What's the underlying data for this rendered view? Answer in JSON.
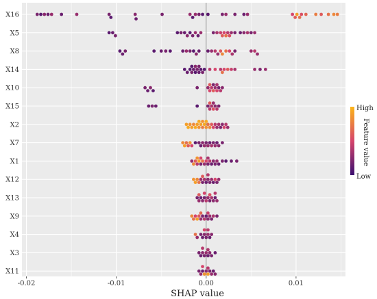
{
  "chart_data": {
    "type": "scatter",
    "subtype": "beeswarm",
    "title": "",
    "xlabel": "SHAP value",
    "ylabel": "",
    "xlim": [
      -0.0205,
      0.0155
    ],
    "xticks": [
      -0.02,
      -0.01,
      0.0,
      0.01
    ],
    "xtick_labels": [
      "-0.02",
      "-0.01",
      "0.00",
      "0.01"
    ],
    "grid": true,
    "background_color": "#ebebeb",
    "zero_line_color": "#8c8c8c",
    "color_scale": {
      "title": "Feature value",
      "high_label": "High",
      "low_label": "Low",
      "low_color": "#3b0f70",
      "mid_color": "#d6456c",
      "high_color": "#fcb519",
      "placement": "right"
    },
    "features": [
      {
        "name": "X16",
        "points": [
          [
            -0.0188,
            0.2
          ],
          [
            -0.0184,
            0.1
          ],
          [
            -0.018,
            0.25
          ],
          [
            -0.0176,
            0.15
          ],
          [
            -0.0172,
            0.3
          ],
          [
            -0.0161,
            0.15
          ],
          [
            -0.0144,
            0.3
          ],
          [
            -0.0108,
            0.2
          ],
          [
            -0.0106,
            0.1
          ],
          [
            -0.0079,
            0.25
          ],
          [
            -0.0078,
            0.15
          ],
          [
            -0.0049,
            0.2
          ],
          [
            -0.0018,
            0.3
          ],
          [
            -0.0015,
            0.1
          ],
          [
            -0.0012,
            0.3
          ],
          [
            -0.0008,
            0.2
          ],
          [
            -0.0004,
            0.1
          ],
          [
            0.0002,
            0.1
          ],
          [
            0.0018,
            0.2
          ],
          [
            0.0022,
            0.3
          ],
          [
            0.0032,
            0.2
          ],
          [
            0.0042,
            0.15
          ],
          [
            0.0046,
            0.3
          ],
          [
            0.0096,
            0.5
          ],
          [
            0.0099,
            0.6
          ],
          [
            0.0101,
            0.9
          ],
          [
            0.0104,
            0.7
          ],
          [
            0.0106,
            0.55
          ],
          [
            0.0111,
            0.65
          ],
          [
            0.0122,
            0.75
          ],
          [
            0.0128,
            0.6
          ],
          [
            0.0136,
            0.7
          ],
          [
            0.0142,
            0.8
          ],
          [
            0.0146,
            0.75
          ]
        ]
      },
      {
        "name": "X5",
        "points": [
          [
            -0.0108,
            0.1
          ],
          [
            -0.0104,
            0.15
          ],
          [
            -0.0101,
            0.2
          ],
          [
            -0.0032,
            0.1
          ],
          [
            -0.0028,
            0.2
          ],
          [
            -0.0024,
            0.15
          ],
          [
            -0.0021,
            0.25
          ],
          [
            -0.0018,
            0.1
          ],
          [
            -0.0015,
            0.2
          ],
          [
            -0.0012,
            0.3
          ],
          [
            -0.0009,
            0.15
          ],
          [
            -0.0006,
            0.3
          ],
          [
            0.0008,
            0.2
          ],
          [
            0.0012,
            0.35
          ],
          [
            0.0016,
            0.45
          ],
          [
            0.0018,
            0.6
          ],
          [
            0.002,
            0.5
          ],
          [
            0.0022,
            0.7
          ],
          [
            0.0024,
            0.4
          ],
          [
            0.0026,
            0.55
          ],
          [
            0.0028,
            0.3
          ],
          [
            0.0032,
            0.2
          ],
          [
            0.0038,
            0.15
          ],
          [
            0.0042,
            0.25
          ],
          [
            0.0046,
            0.35
          ],
          [
            0.005,
            0.2
          ],
          [
            0.0054,
            0.3
          ]
        ]
      },
      {
        "name": "X8",
        "points": [
          [
            -0.0096,
            0.1
          ],
          [
            -0.0093,
            0.15
          ],
          [
            -0.009,
            0.2
          ],
          [
            -0.0058,
            0.1
          ],
          [
            -0.005,
            0.15
          ],
          [
            -0.0045,
            0.2
          ],
          [
            -0.004,
            0.1
          ],
          [
            -0.0026,
            0.15
          ],
          [
            -0.0022,
            0.3
          ],
          [
            -0.0018,
            0.2
          ],
          [
            -0.0014,
            0.1
          ],
          [
            -0.0011,
            0.25
          ],
          [
            -0.0008,
            0.15
          ],
          [
            0.0002,
            0.15
          ],
          [
            0.0006,
            0.3
          ],
          [
            0.001,
            0.4
          ],
          [
            0.0013,
            0.3
          ],
          [
            0.0016,
            0.6
          ],
          [
            0.0018,
            0.8
          ],
          [
            0.0022,
            0.7
          ],
          [
            0.0026,
            0.5
          ],
          [
            0.0029,
            0.35
          ],
          [
            0.0032,
            0.2
          ],
          [
            0.005,
            0.3
          ],
          [
            0.0054,
            0.4
          ],
          [
            0.0057,
            0.3
          ]
        ]
      },
      {
        "name": "X14",
        "points": [
          [
            -0.0024,
            0.1
          ],
          [
            -0.0021,
            0.15
          ],
          [
            -0.0018,
            0.1
          ],
          [
            -0.0016,
            0.2
          ],
          [
            -0.0014,
            0.15
          ],
          [
            -0.0012,
            0.1
          ],
          [
            -0.001,
            0.2
          ],
          [
            -0.0008,
            0.15
          ],
          [
            -0.0006,
            0.1
          ],
          [
            -0.0004,
            0.2
          ],
          [
            -0.0002,
            0.1
          ],
          [
            -0.0016,
            0.1
          ],
          [
            -0.0012,
            0.25
          ],
          [
            -0.0008,
            0.2
          ],
          [
            0.0004,
            0.4
          ],
          [
            0.001,
            0.5
          ],
          [
            0.0016,
            0.4
          ],
          [
            0.0018,
            0.7
          ],
          [
            0.002,
            0.5
          ],
          [
            0.0024,
            0.6
          ],
          [
            0.0028,
            0.45
          ],
          [
            0.0032,
            0.35
          ],
          [
            0.0054,
            0.3
          ],
          [
            0.006,
            0.2
          ],
          [
            0.0066,
            0.3
          ]
        ]
      },
      {
        "name": "X10",
        "points": [
          [
            -0.0068,
            0.2
          ],
          [
            -0.0065,
            0.15
          ],
          [
            -0.0062,
            0.25
          ],
          [
            -0.0059,
            0.1
          ],
          [
            -0.001,
            0.2
          ],
          [
            0.0002,
            0.3
          ],
          [
            0.0004,
            0.5
          ],
          [
            0.0006,
            0.4
          ],
          [
            0.0008,
            0.6
          ],
          [
            0.001,
            0.3
          ],
          [
            0.0012,
            0.5
          ],
          [
            0.0014,
            0.2
          ],
          [
            0.0016,
            0.4
          ],
          [
            0.0018,
            0.25
          ],
          [
            0.0004,
            0.6
          ],
          [
            0.0008,
            0.2
          ],
          [
            0.0012,
            0.35
          ]
        ]
      },
      {
        "name": "X15",
        "points": [
          [
            -0.0064,
            0.15
          ],
          [
            -0.006,
            0.2
          ],
          [
            -0.0056,
            0.15
          ],
          [
            -0.001,
            0.1
          ],
          [
            0.0002,
            0.2
          ],
          [
            0.0004,
            0.4
          ],
          [
            0.0006,
            0.35
          ],
          [
            0.0008,
            0.55
          ],
          [
            0.001,
            0.25
          ],
          [
            0.0012,
            0.4
          ],
          [
            0.0014,
            0.2
          ],
          [
            0.0004,
            0.6
          ],
          [
            0.0008,
            0.3
          ]
        ]
      },
      {
        "name": "X2",
        "points": [
          [
            -0.0022,
            0.9
          ],
          [
            -0.002,
            0.95
          ],
          [
            -0.0018,
            0.85
          ],
          [
            -0.0016,
            0.9
          ],
          [
            -0.0014,
            0.8
          ],
          [
            -0.0012,
            0.95
          ],
          [
            -0.001,
            0.9
          ],
          [
            -0.0008,
            0.85
          ],
          [
            -0.0006,
            0.9
          ],
          [
            -0.0004,
            0.75
          ],
          [
            -0.0002,
            0.95
          ],
          [
            0.0,
            0.85
          ],
          [
            0.0002,
            0.7
          ],
          [
            0.0004,
            0.8
          ],
          [
            0.0006,
            0.6
          ],
          [
            0.0008,
            0.5
          ],
          [
            0.001,
            0.4
          ],
          [
            0.0012,
            0.3
          ],
          [
            0.0014,
            0.35
          ],
          [
            0.0016,
            0.2
          ],
          [
            0.0018,
            0.25
          ],
          [
            0.002,
            0.5
          ],
          [
            0.0022,
            0.4
          ],
          [
            0.0024,
            0.3
          ],
          [
            -0.0008,
            0.95
          ],
          [
            -0.0004,
            0.85
          ],
          [
            0.0,
            0.95
          ]
        ]
      },
      {
        "name": "X7",
        "points": [
          [
            -0.0026,
            0.8
          ],
          [
            -0.0024,
            0.9
          ],
          [
            -0.0022,
            0.7
          ],
          [
            -0.002,
            0.6
          ],
          [
            -0.0018,
            0.85
          ],
          [
            -0.0016,
            0.5
          ],
          [
            -0.0012,
            0.1
          ],
          [
            -0.0008,
            0.2
          ],
          [
            -0.0006,
            0.15
          ],
          [
            -0.0004,
            0.25
          ],
          [
            0.0,
            0.2
          ],
          [
            0.0002,
            0.3
          ],
          [
            0.0004,
            0.15
          ],
          [
            0.0006,
            0.35
          ],
          [
            0.0008,
            0.2
          ],
          [
            0.001,
            0.3
          ],
          [
            0.0012,
            0.15
          ],
          [
            0.0014,
            0.25
          ],
          [
            0.0018,
            0.2
          ],
          [
            -0.0002,
            0.3
          ]
        ]
      },
      {
        "name": "X1",
        "points": [
          [
            -0.0016,
            0.3
          ],
          [
            -0.0014,
            0.8
          ],
          [
            -0.0012,
            0.6
          ],
          [
            -0.001,
            0.4
          ],
          [
            -0.0008,
            0.9
          ],
          [
            -0.0006,
            0.2
          ],
          [
            -0.0004,
            0.7
          ],
          [
            -0.0002,
            0.3
          ],
          [
            0.0,
            0.5
          ],
          [
            0.0002,
            0.2
          ],
          [
            0.0004,
            0.4
          ],
          [
            0.0006,
            0.15
          ],
          [
            0.0008,
            0.25
          ],
          [
            0.001,
            0.2
          ],
          [
            0.0012,
            0.3
          ],
          [
            0.0014,
            0.15
          ],
          [
            0.0018,
            0.2
          ],
          [
            0.0022,
            0.1
          ],
          [
            0.0028,
            0.15
          ],
          [
            0.0034,
            0.2
          ],
          [
            -0.001,
            0.85
          ],
          [
            -0.0006,
            0.5
          ],
          [
            0.0002,
            0.35
          ]
        ]
      },
      {
        "name": "X12",
        "points": [
          [
            -0.0014,
            0.85
          ],
          [
            -0.0012,
            0.9
          ],
          [
            -0.001,
            0.8
          ],
          [
            -0.0008,
            0.7
          ],
          [
            -0.0006,
            0.3
          ],
          [
            -0.0004,
            0.2
          ],
          [
            -0.0002,
            0.35
          ],
          [
            0.0,
            0.15
          ],
          [
            0.0002,
            0.25
          ],
          [
            0.0004,
            0.2
          ],
          [
            0.0006,
            0.3
          ],
          [
            0.0008,
            0.15
          ],
          [
            0.001,
            0.5
          ],
          [
            0.0012,
            0.2
          ],
          [
            0.0014,
            0.3
          ],
          [
            -0.0004,
            0.6
          ],
          [
            0.0002,
            0.4
          ]
        ]
      },
      {
        "name": "X13",
        "points": [
          [
            -0.001,
            0.2
          ],
          [
            -0.0008,
            0.3
          ],
          [
            -0.0006,
            0.15
          ],
          [
            -0.0004,
            0.25
          ],
          [
            -0.0002,
            0.2
          ],
          [
            0.0,
            0.4
          ],
          [
            0.0002,
            0.3
          ],
          [
            0.0004,
            0.2
          ],
          [
            0.0006,
            0.35
          ],
          [
            0.0008,
            0.25
          ],
          [
            0.001,
            0.15
          ],
          [
            0.0012,
            0.3
          ],
          [
            -0.0008,
            0.6
          ],
          [
            -0.0002,
            0.5
          ],
          [
            0.0004,
            0.55
          ],
          [
            0.001,
            0.4
          ]
        ]
      },
      {
        "name": "X9",
        "points": [
          [
            -0.0016,
            0.8
          ],
          [
            -0.0014,
            0.7
          ],
          [
            -0.0012,
            0.5
          ],
          [
            -0.001,
            0.9
          ],
          [
            -0.0008,
            0.6
          ],
          [
            -0.0006,
            0.3
          ],
          [
            -0.0004,
            0.2
          ],
          [
            -0.0002,
            0.4
          ],
          [
            0.0,
            0.15
          ],
          [
            0.0002,
            0.25
          ],
          [
            0.0004,
            0.3
          ],
          [
            0.0006,
            0.2
          ],
          [
            0.0008,
            0.35
          ],
          [
            0.0012,
            0.2
          ],
          [
            -0.0006,
            0.65
          ],
          [
            0.0002,
            0.45
          ]
        ]
      },
      {
        "name": "X4",
        "points": [
          [
            -0.0012,
            0.7
          ],
          [
            -0.001,
            0.3
          ],
          [
            -0.0006,
            0.2
          ],
          [
            -0.0004,
            0.15
          ],
          [
            -0.0002,
            0.25
          ],
          [
            0.0,
            0.2
          ],
          [
            0.0002,
            0.3
          ],
          [
            0.0004,
            0.15
          ],
          [
            0.0006,
            0.25
          ],
          [
            -0.0002,
            0.5
          ],
          [
            0.0002,
            0.4
          ]
        ]
      },
      {
        "name": "X3",
        "points": [
          [
            -0.0008,
            0.2
          ],
          [
            -0.0006,
            0.15
          ],
          [
            -0.0004,
            0.25
          ],
          [
            -0.0002,
            0.2
          ],
          [
            0.0,
            0.3
          ],
          [
            0.0002,
            0.15
          ],
          [
            0.0004,
            0.25
          ],
          [
            0.0006,
            0.2
          ],
          [
            0.001,
            0.15
          ],
          [
            -0.0004,
            0.4
          ],
          [
            0.0002,
            0.35
          ]
        ]
      },
      {
        "name": "X11",
        "points": [
          [
            -0.0008,
            0.2
          ],
          [
            -0.0006,
            0.3
          ],
          [
            -0.0004,
            0.15
          ],
          [
            -0.0002,
            0.85
          ],
          [
            0.0,
            0.25
          ],
          [
            0.0002,
            0.9
          ],
          [
            0.0004,
            0.2
          ],
          [
            0.0006,
            0.3
          ],
          [
            0.0008,
            0.15
          ],
          [
            -0.0004,
            0.5
          ],
          [
            0.0002,
            0.4
          ],
          [
            0.001,
            0.25
          ]
        ]
      }
    ]
  }
}
